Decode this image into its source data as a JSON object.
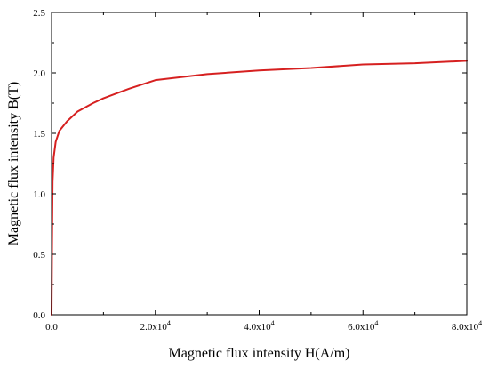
{
  "chart_data": {
    "type": "line",
    "title": "",
    "xlabel": "Magnetic flux intensity H(A/m)",
    "ylabel": "Magnetic flux intensity B(T)",
    "xlim": [
      0,
      80000
    ],
    "ylim": [
      0,
      2.5
    ],
    "x_ticks": [
      {
        "value": 0,
        "mantissa": "0.0",
        "exponent": ""
      },
      {
        "value": 20000,
        "mantissa": "2.0x10",
        "exponent": "4"
      },
      {
        "value": 40000,
        "mantissa": "4.0x10",
        "exponent": "4"
      },
      {
        "value": 60000,
        "mantissa": "6.0x10",
        "exponent": "4"
      },
      {
        "value": 80000,
        "mantissa": "8.0x10",
        "exponent": "4"
      }
    ],
    "y_ticks": [
      {
        "value": 0,
        "label": "0.0"
      },
      {
        "value": 0.5,
        "label": "0.5"
      },
      {
        "value": 1.0,
        "label": "1.0"
      },
      {
        "value": 1.5,
        "label": "1.5"
      },
      {
        "value": 2.0,
        "label": "2.0"
      },
      {
        "value": 2.5,
        "label": "2.5"
      }
    ],
    "grid": false,
    "series": [
      {
        "color": "#d62020",
        "x": [
          0,
          100,
          200,
          400,
          800,
          1500,
          3000,
          5000,
          8000,
          10000,
          15000,
          20000,
          30000,
          40000,
          50000,
          60000,
          70000,
          80000
        ],
        "y": [
          0,
          0.6,
          1.1,
          1.3,
          1.43,
          1.52,
          1.6,
          1.68,
          1.75,
          1.79,
          1.87,
          1.94,
          1.99,
          2.02,
          2.04,
          2.07,
          2.08,
          2.1
        ]
      }
    ]
  }
}
